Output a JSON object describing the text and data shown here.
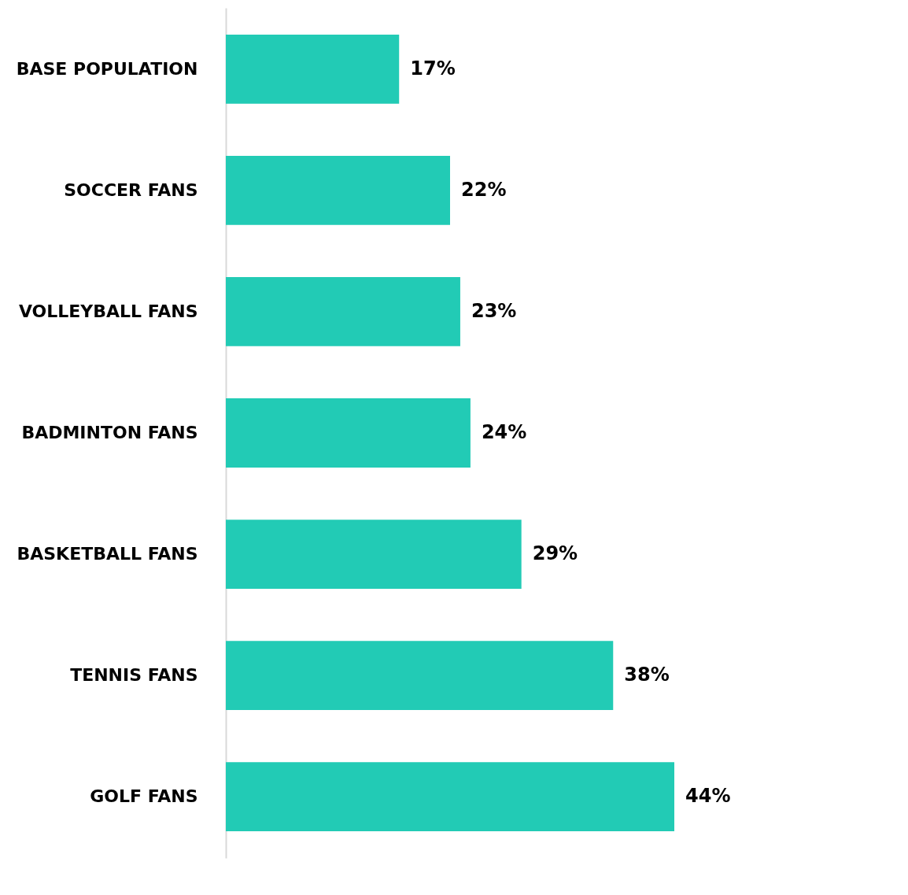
{
  "chart_data": {
    "type": "bar",
    "orientation": "horizontal",
    "categories": [
      "BASE POPULATION",
      "SOCCER FANS",
      "VOLLEYBALL FANS",
      "BADMINTON FANS",
      "BASKETBALL FANS",
      "TENNIS FANS",
      "GOLF FANS"
    ],
    "values": [
      17,
      22,
      23,
      24,
      29,
      38,
      44
    ],
    "value_labels": [
      "17%",
      "22%",
      "23%",
      "24%",
      "29%",
      "38%",
      "44%"
    ],
    "color": "#22cbb5",
    "grid": false
  }
}
